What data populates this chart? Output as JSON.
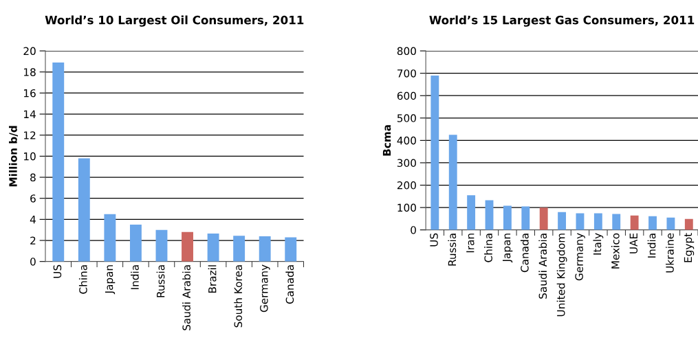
{
  "chart_data": [
    {
      "type": "bar",
      "title": "World’s 10 Largest Oil Consumers, 2011",
      "ylabel": "Million b/d",
      "categories": [
        "US",
        "China",
        "Japan",
        "India",
        "Russia",
        "Saudi Arabia",
        "Brazil",
        "South Korea",
        "Germany",
        "Canada"
      ],
      "values": [
        18.9,
        9.8,
        4.5,
        3.5,
        3.0,
        2.8,
        2.65,
        2.45,
        2.4,
        2.3
      ],
      "colors": [
        "#6aa6ea",
        "#6aa6ea",
        "#6aa6ea",
        "#6aa6ea",
        "#6aa6ea",
        "#cc6660",
        "#6aa6ea",
        "#6aa6ea",
        "#6aa6ea",
        "#6aa6ea"
      ],
      "ylim": [
        0,
        20
      ],
      "yticks": [
        0,
        2,
        4,
        6,
        8,
        10,
        12,
        14,
        16,
        18,
        20
      ],
      "grid": "y"
    },
    {
      "type": "bar",
      "title": "World’s 15 Largest Gas Consumers, 2011",
      "ylabel": "Bcma",
      "categories": [
        "US",
        "Russia",
        "Iran",
        "China",
        "Japan",
        "Canada",
        "Saudi Arabia",
        "United Kingdom",
        "Germany",
        "Italy",
        "Mexico",
        "UAE",
        "India",
        "Ukraine",
        "Egypt"
      ],
      "values": [
        690,
        425,
        155,
        133,
        108,
        105,
        100,
        80,
        74,
        74,
        71,
        64,
        61,
        55,
        49
      ],
      "colors": [
        "#6aa6ea",
        "#6aa6ea",
        "#6aa6ea",
        "#6aa6ea",
        "#6aa6ea",
        "#6aa6ea",
        "#cc6660",
        "#6aa6ea",
        "#6aa6ea",
        "#6aa6ea",
        "#6aa6ea",
        "#cc6660",
        "#6aa6ea",
        "#6aa6ea",
        "#cc6660"
      ],
      "ylim": [
        0,
        800
      ],
      "yticks": [
        0,
        100,
        200,
        300,
        400,
        500,
        600,
        700,
        800
      ],
      "grid": "y"
    }
  ]
}
